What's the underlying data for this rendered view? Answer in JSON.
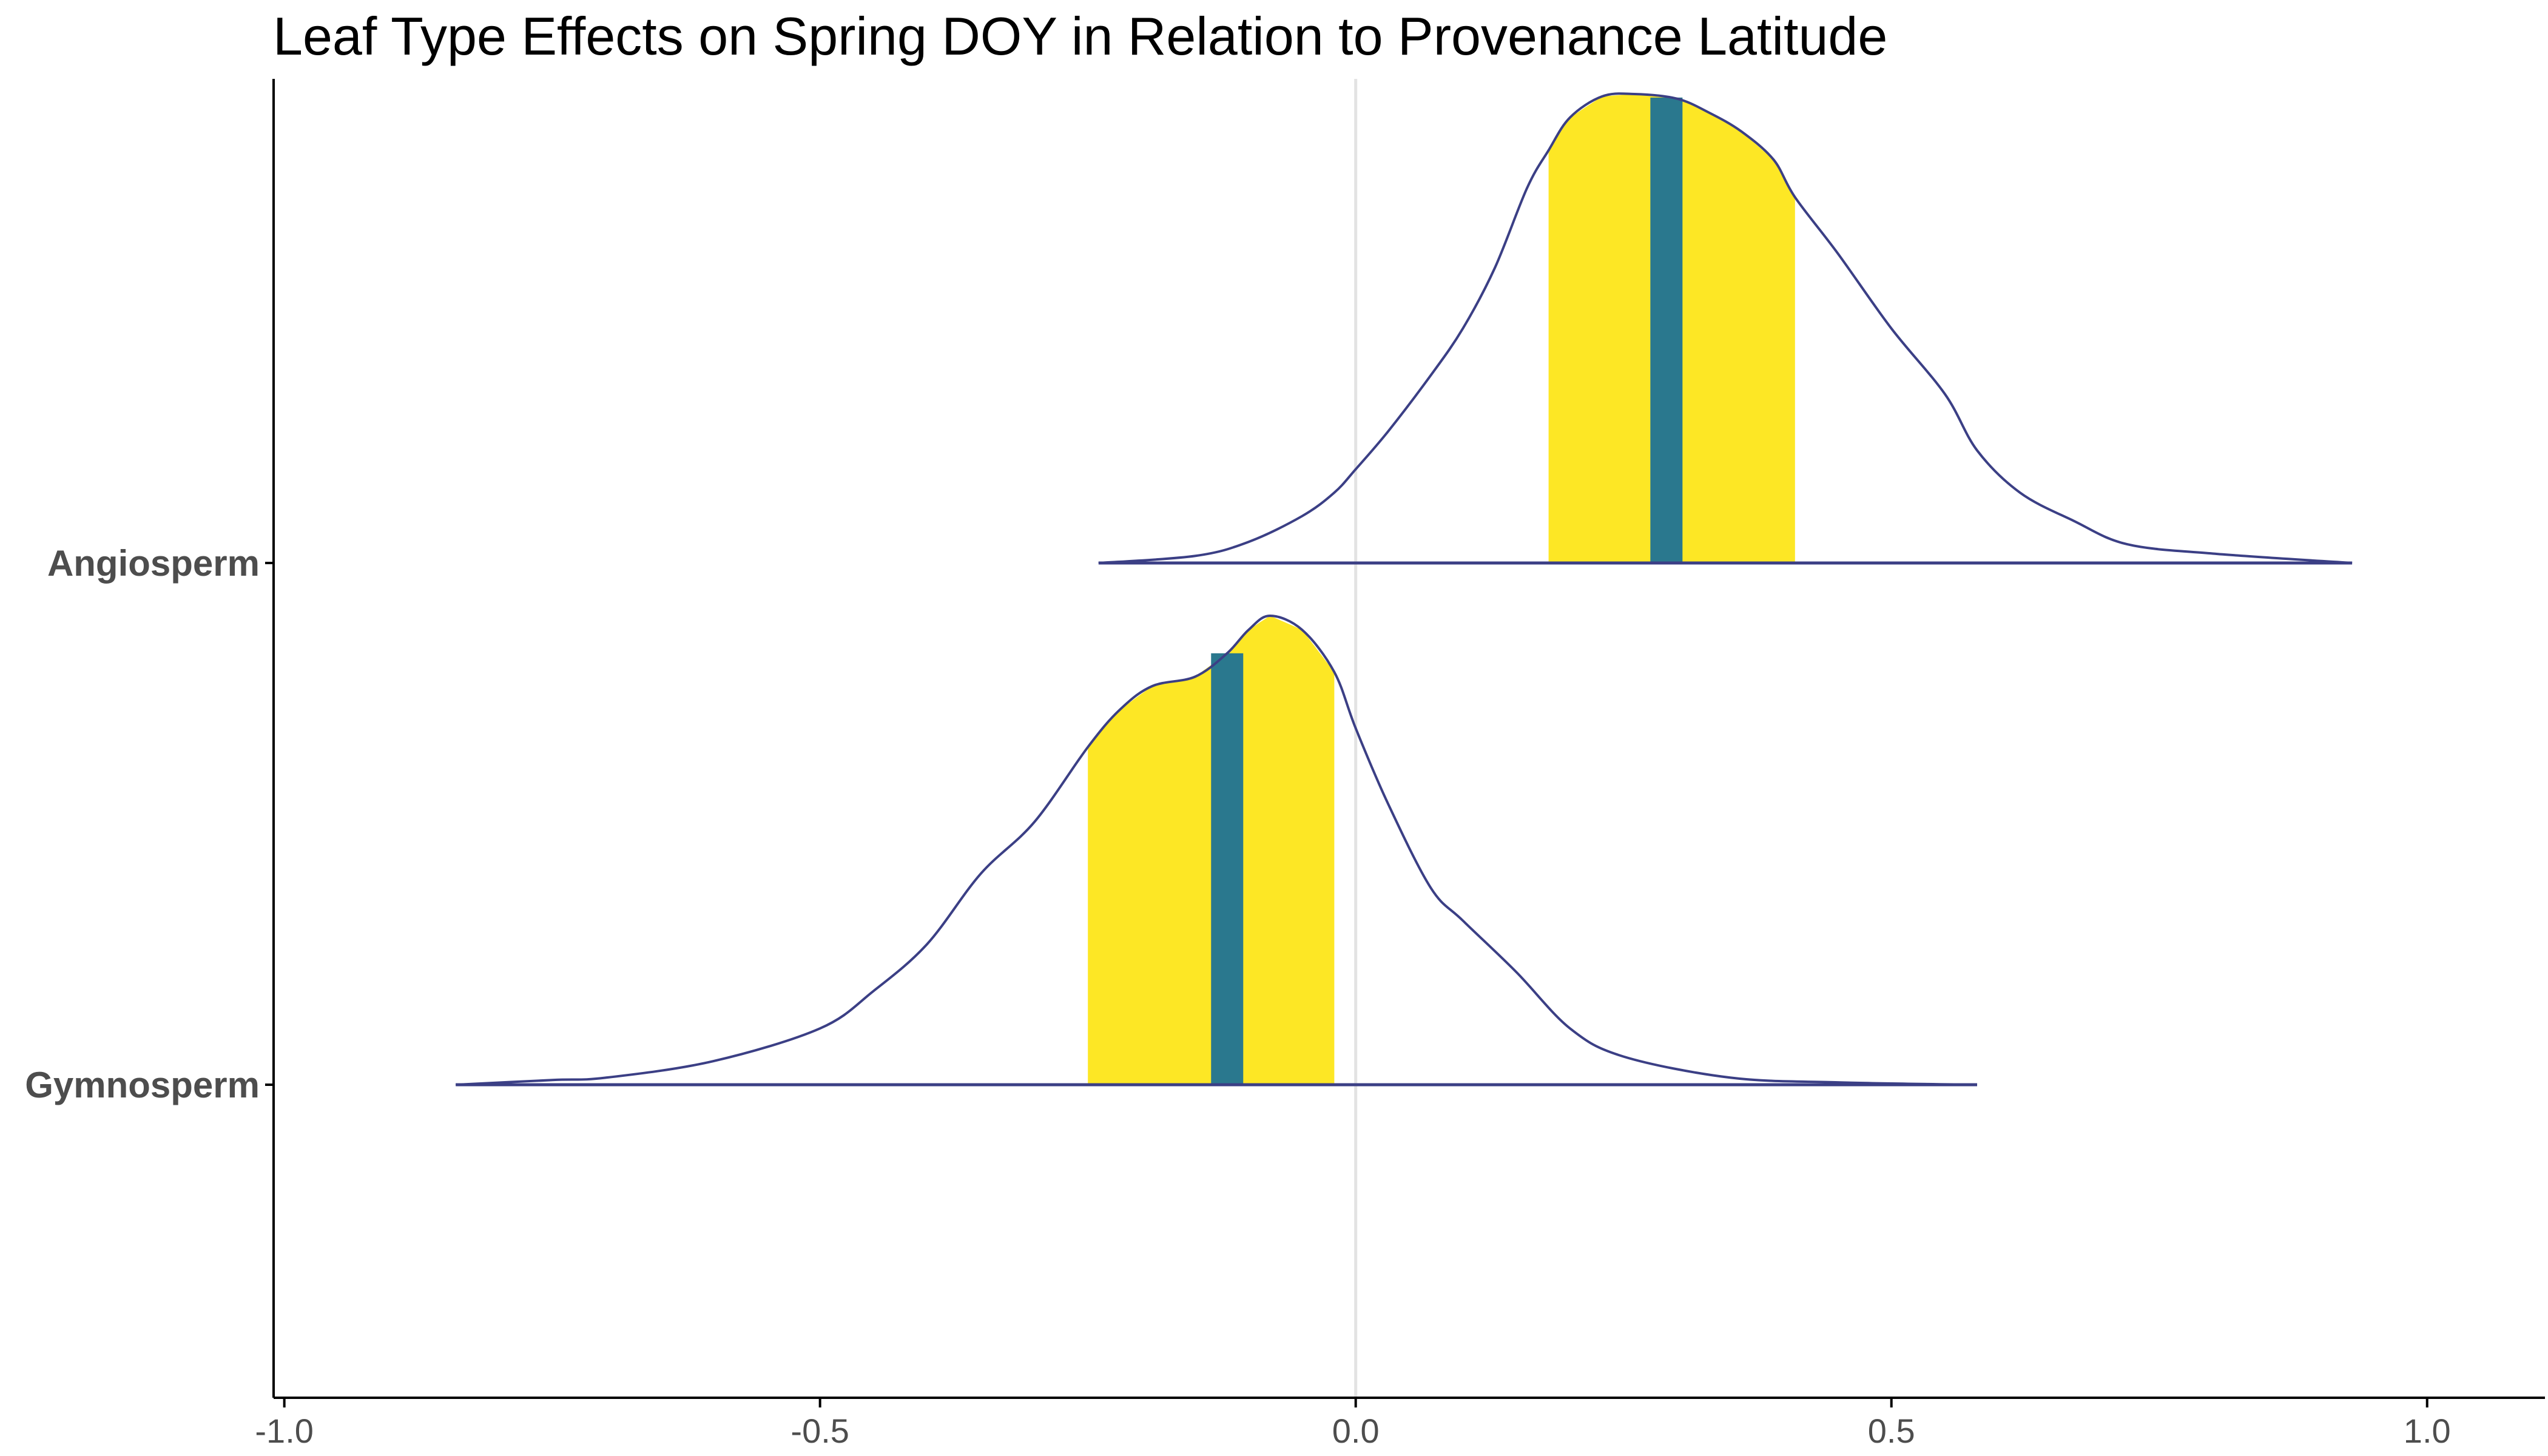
{
  "chart_data": {
    "type": "density-ridgeline",
    "title": "Leaf Type Effects on Spring DOY in Relation to Provenance Latitude",
    "xlabel": "",
    "ylabel": "",
    "xlim": [
      -1.01,
      1.11
    ],
    "x_ticks": [
      -1.0,
      -0.5,
      0.0,
      0.5,
      1.0
    ],
    "x_tick_labels": [
      "-1.0",
      "-0.5",
      "0.0",
      "0.5",
      "1.0"
    ],
    "categories": [
      "Angiosperm",
      "Gymnosperm"
    ],
    "reference_line_x": 0,
    "grid": false,
    "colors": {
      "outline": "#3b3f85",
      "interval_fill": "#fde725",
      "median_line": "#2a788e",
      "zero_line": "#e3e3e3",
      "axis": "#000000"
    },
    "series": [
      {
        "name": "Angiosperm",
        "median": 0.29,
        "interval": [
          0.18,
          0.41
        ],
        "density": [
          [
            -0.24,
            0.0
          ],
          [
            -0.15,
            0.015
          ],
          [
            -0.1,
            0.045
          ],
          [
            -0.05,
            0.1
          ],
          [
            -0.02,
            0.15
          ],
          [
            0.0,
            0.2
          ],
          [
            0.03,
            0.28
          ],
          [
            0.07,
            0.4
          ],
          [
            0.1,
            0.5
          ],
          [
            0.13,
            0.63
          ],
          [
            0.16,
            0.8
          ],
          [
            0.18,
            0.88
          ],
          [
            0.2,
            0.95
          ],
          [
            0.23,
            0.995
          ],
          [
            0.26,
            1.0
          ],
          [
            0.3,
            0.99
          ],
          [
            0.33,
            0.96
          ],
          [
            0.36,
            0.92
          ],
          [
            0.39,
            0.86
          ],
          [
            0.41,
            0.78
          ],
          [
            0.45,
            0.66
          ],
          [
            0.5,
            0.5
          ],
          [
            0.55,
            0.36
          ],
          [
            0.58,
            0.24
          ],
          [
            0.62,
            0.15
          ],
          [
            0.67,
            0.09
          ],
          [
            0.72,
            0.04
          ],
          [
            0.8,
            0.02
          ],
          [
            0.93,
            0.0
          ]
        ]
      },
      {
        "name": "Gymnosperm",
        "median": -0.12,
        "interval": [
          -0.25,
          -0.02
        ],
        "density": [
          [
            -0.84,
            0.0
          ],
          [
            -0.75,
            0.01
          ],
          [
            -0.7,
            0.015
          ],
          [
            -0.6,
            0.05
          ],
          [
            -0.5,
            0.12
          ],
          [
            -0.45,
            0.2
          ],
          [
            -0.4,
            0.3
          ],
          [
            -0.35,
            0.45
          ],
          [
            -0.3,
            0.56
          ],
          [
            -0.25,
            0.72
          ],
          [
            -0.22,
            0.8
          ],
          [
            -0.19,
            0.85
          ],
          [
            -0.15,
            0.87
          ],
          [
            -0.12,
            0.92
          ],
          [
            -0.1,
            0.97
          ],
          [
            -0.08,
            1.0
          ],
          [
            -0.05,
            0.97
          ],
          [
            -0.02,
            0.88
          ],
          [
            0.0,
            0.76
          ],
          [
            0.03,
            0.6
          ],
          [
            0.07,
            0.42
          ],
          [
            0.1,
            0.35
          ],
          [
            0.15,
            0.24
          ],
          [
            0.2,
            0.12
          ],
          [
            0.25,
            0.06
          ],
          [
            0.35,
            0.015
          ],
          [
            0.45,
            0.005
          ],
          [
            0.58,
            0.0
          ]
        ]
      }
    ]
  }
}
